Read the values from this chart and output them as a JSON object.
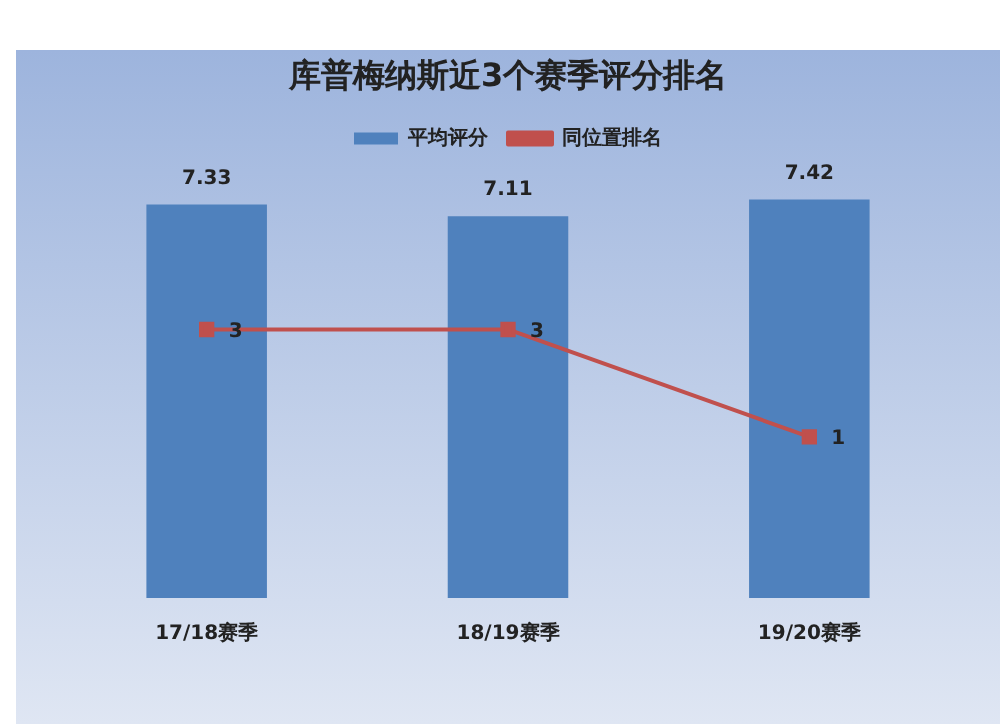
{
  "chart_data": {
    "type": "bar",
    "title": "库普梅纳斯近3个赛季评分排名",
    "categories": [
      "17/18赛季",
      "18/19赛季",
      "19/20赛季"
    ],
    "series": [
      {
        "name": "平均评分",
        "color": "#4f81bd",
        "values": [
          7.33,
          7.11,
          7.42
        ]
      },
      {
        "name": "同位置排名",
        "type": "line",
        "axis": "y2",
        "color": "#c0504d",
        "marker": "square",
        "values": [
          3,
          3,
          1
        ]
      }
    ],
    "tick_labels": "x",
    "data_labels": true,
    "legend": "top",
    "grid": false
  }
}
